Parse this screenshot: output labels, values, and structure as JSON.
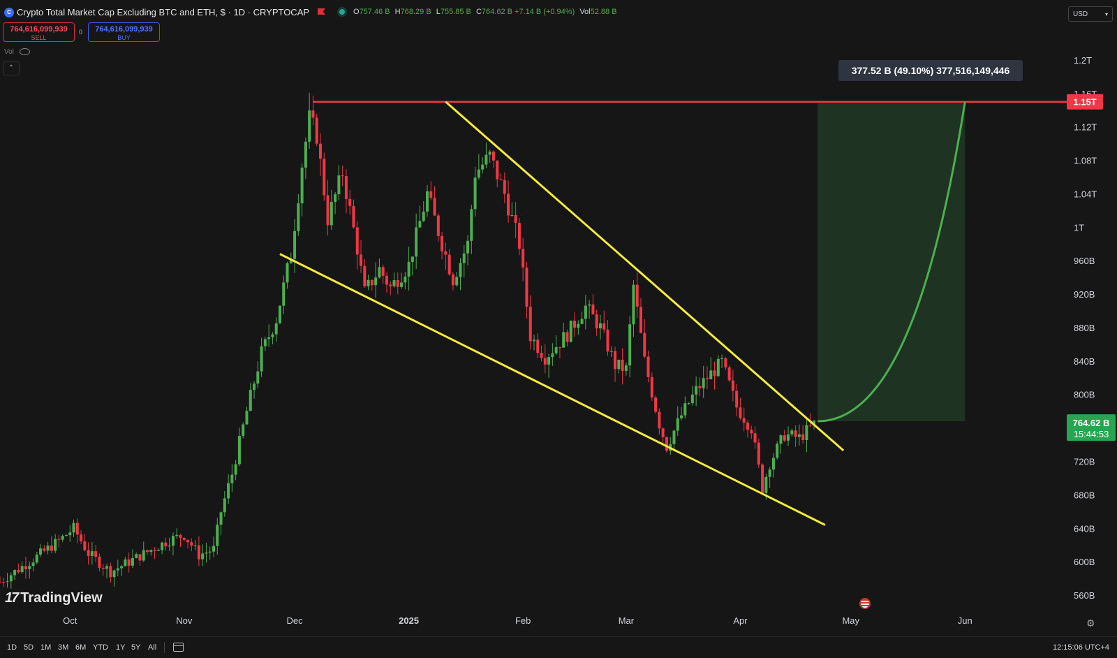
{
  "header": {
    "symbol_badge": "C",
    "title": "Crypto Total Market Cap Excluding BTC and ETH, $ · 1D · CRYPTOCAP",
    "ohlc": [
      {
        "key": "O",
        "value": "757.46 B"
      },
      {
        "key": "H",
        "value": "768.29 B"
      },
      {
        "key": "L",
        "value": "755.85 B"
      },
      {
        "key": "C",
        "value": "764.62 B +7.14 B (+0.94%)"
      },
      {
        "key": "Vol",
        "value": "52.88 B"
      }
    ],
    "currency": "USD"
  },
  "trade": {
    "sell_price": "764,616,099,939",
    "sell_label": "SELL",
    "spread": "0",
    "buy_price": "764,616,099,939",
    "buy_label": "BUY"
  },
  "indicator": {
    "vol_label": "Vol"
  },
  "chart_data": {
    "type": "candlestick",
    "title": "Crypto Total Market Cap Excluding BTC and ETH",
    "y_ticks": [
      "1.2T",
      "1.16T",
      "1.12T",
      "1.08T",
      "1.04T",
      "1T",
      "960B",
      "920B",
      "880B",
      "840B",
      "800B",
      "760B",
      "720B",
      "680B",
      "640B",
      "600B",
      "560B"
    ],
    "y_tick_values": [
      1200,
      1160,
      1120,
      1080,
      1040,
      1000,
      960,
      920,
      880,
      840,
      800,
      760,
      720,
      680,
      640,
      600,
      560
    ],
    "ylim": [
      545,
      1240
    ],
    "x_ticks": [
      "Oct",
      "Nov",
      "Dec",
      "2025",
      "Feb",
      "Mar",
      "Apr",
      "May",
      "Jun"
    ],
    "x_tick_dates": [
      "2024-10-01",
      "2024-11-01",
      "2024-12-01",
      "2025-01-01",
      "2025-02-01",
      "2025-03-01",
      "2025-04-01",
      "2025-05-01",
      "2025-06-01"
    ],
    "xlim": [
      "2024-09-12",
      "2025-06-29"
    ],
    "series_points": [
      [
        "2024-09-12",
        576
      ],
      [
        "2024-09-20",
        600
      ],
      [
        "2024-09-28",
        625
      ],
      [
        "2024-10-02",
        640
      ],
      [
        "2024-10-06",
        610
      ],
      [
        "2024-10-12",
        588
      ],
      [
        "2024-10-20",
        607
      ],
      [
        "2024-10-28",
        626
      ],
      [
        "2024-11-01",
        632
      ],
      [
        "2024-11-05",
        608
      ],
      [
        "2024-11-09",
        615
      ],
      [
        "2024-11-11",
        660
      ],
      [
        "2024-11-14",
        705
      ],
      [
        "2024-11-18",
        780
      ],
      [
        "2024-11-22",
        850
      ],
      [
        "2024-11-26",
        890
      ],
      [
        "2024-11-30",
        968
      ],
      [
        "2024-12-03",
        1075
      ],
      [
        "2024-12-05",
        1130
      ],
      [
        "2024-12-07",
        1110
      ],
      [
        "2024-12-10",
        1010
      ],
      [
        "2024-12-14",
        1065
      ],
      [
        "2024-12-18",
        975
      ],
      [
        "2024-12-20",
        922
      ],
      [
        "2024-12-24",
        950
      ],
      [
        "2024-12-27",
        928
      ],
      [
        "2025-01-01",
        955
      ],
      [
        "2025-01-06",
        1040
      ],
      [
        "2025-01-09",
        995
      ],
      [
        "2025-01-13",
        938
      ],
      [
        "2025-01-17",
        980
      ],
      [
        "2025-01-19",
        1065
      ],
      [
        "2025-01-23",
        1085
      ],
      [
        "2025-01-27",
        1040
      ],
      [
        "2025-01-31",
        980
      ],
      [
        "2025-02-03",
        870
      ],
      [
        "2025-02-07",
        845
      ],
      [
        "2025-02-13",
        872
      ],
      [
        "2025-02-18",
        905
      ],
      [
        "2025-02-22",
        880
      ],
      [
        "2025-02-26",
        835
      ],
      [
        "2025-03-01",
        830
      ],
      [
        "2025-03-03",
        930
      ],
      [
        "2025-03-06",
        840
      ],
      [
        "2025-03-10",
        765
      ],
      [
        "2025-03-12",
        738
      ],
      [
        "2025-03-16",
        775
      ],
      [
        "2025-03-20",
        805
      ],
      [
        "2025-03-24",
        825
      ],
      [
        "2025-03-27",
        838
      ],
      [
        "2025-03-31",
        785
      ],
      [
        "2025-04-04",
        760
      ],
      [
        "2025-04-07",
        688
      ],
      [
        "2025-04-09",
        718
      ],
      [
        "2025-04-13",
        752
      ],
      [
        "2025-04-17",
        748
      ],
      [
        "2025-04-21",
        764.62
      ]
    ],
    "current_price": "764.62 B",
    "countdown": "15:44:53",
    "horizontal_level": {
      "value": 1150,
      "label": "1.15T"
    },
    "falling_wedge": {
      "upper_line": [
        [
          "2025-01-11",
          1150
        ],
        [
          "2025-04-29",
          733
        ]
      ],
      "lower_line": [
        [
          "2024-11-27",
          968
        ],
        [
          "2025-04-24",
          644
        ]
      ]
    },
    "projection": {
      "from": [
        "2025-04-22",
        768
      ],
      "to": [
        "2025-06-01",
        1150
      ],
      "box_bottom": 768,
      "label": "377.52 B (49.10%) 377,516,149,446"
    },
    "colors": {
      "up": "#4caf50",
      "down": "#f23645",
      "wedge": "#f6eb3a",
      "level": "#f23645",
      "projection": "#4caf50",
      "projection_fill": "#1f3322",
      "price_tag": "#26a650"
    }
  },
  "watermark": "TradingView",
  "timeframes": [
    "1D",
    "5D",
    "1M",
    "3M",
    "6M",
    "YTD",
    "1Y",
    "5Y",
    "All"
  ],
  "clock": "12:15:06 UTC+4"
}
